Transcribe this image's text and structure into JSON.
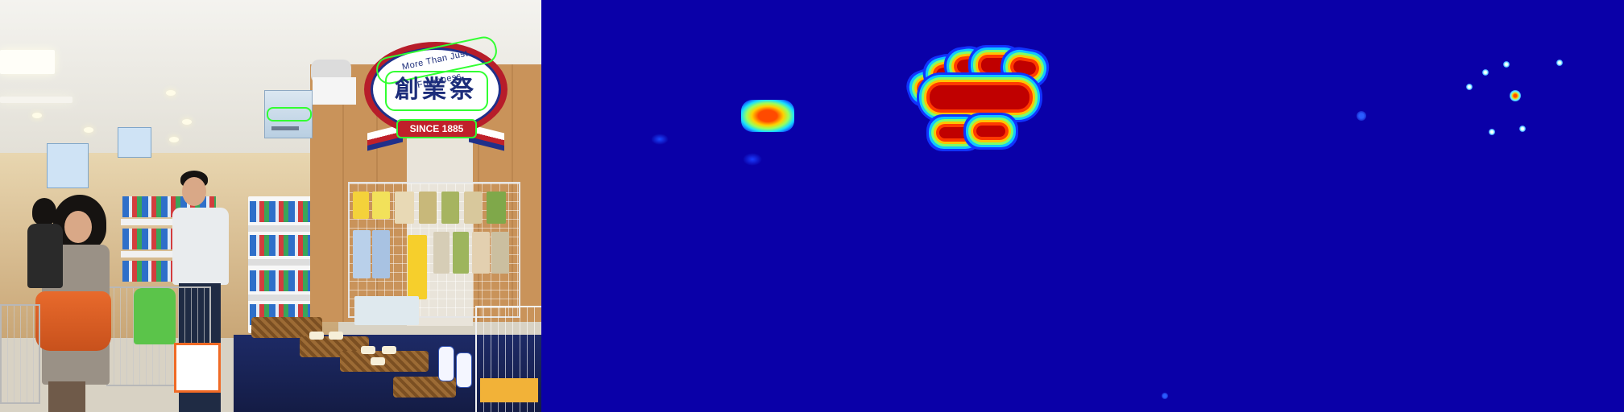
{
  "panels": [
    {
      "name": "source-photo"
    },
    {
      "name": "text-detection-heatmap"
    },
    {
      "name": "character-center-heatmap"
    }
  ],
  "store_sign": {
    "tagline": "More Than Just Freshness",
    "title": "創業祭",
    "since": "SINCE 1885"
  },
  "colors": {
    "detection_outline": "#32ff32",
    "sign_red": "#b71d2a",
    "sign_blue": "#20308a",
    "heatmap_background": "#0a00a8",
    "heatmap_hot": "#c00000"
  }
}
